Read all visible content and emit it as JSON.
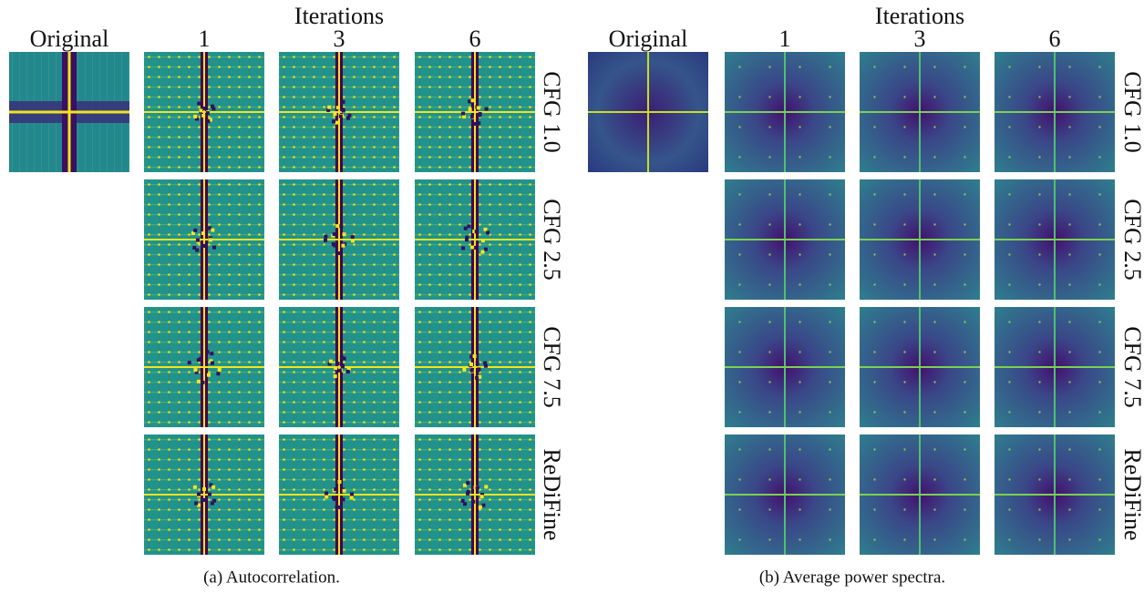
{
  "panels": [
    {
      "header": "Iterations",
      "columns": [
        "Original",
        "1",
        "3",
        "6"
      ],
      "rows": [
        "CFG 1.0",
        "CFG 2.5",
        "CFG 7.5",
        "ReDiFine"
      ],
      "caption": "(a) Autocorrelation."
    },
    {
      "header": "Iterations",
      "columns": [
        "Original",
        "1",
        "3",
        "6"
      ],
      "rows": [
        "CFG 1.0",
        "CFG 2.5",
        "CFG 7.5",
        "ReDiFine"
      ],
      "caption": "(b) Average power spectra."
    }
  ]
}
